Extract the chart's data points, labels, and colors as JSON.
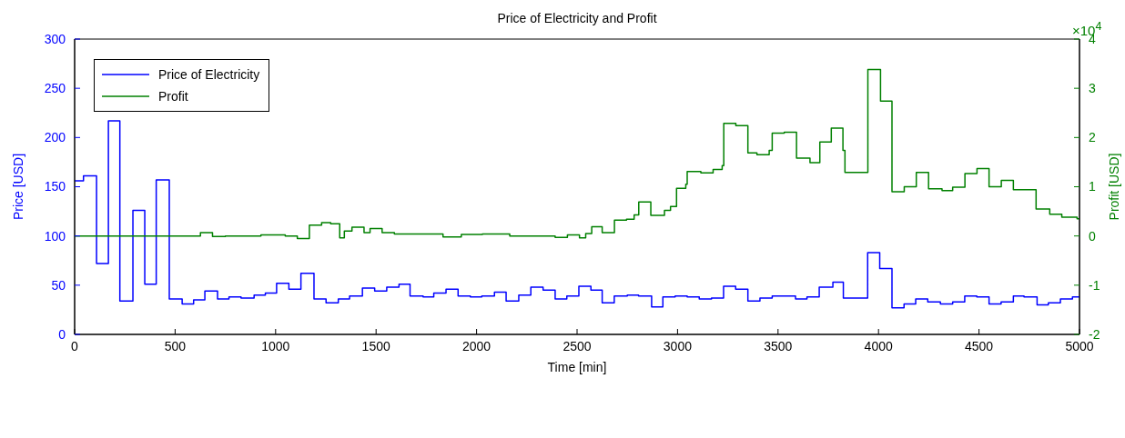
{
  "chart_data": {
    "type": "step",
    "title": "Price of Electricity and Profit",
    "xlabel": "Time [min]",
    "ylabel": "Price [USD]",
    "y2label": "Profit [USD]",
    "annotations": [
      "×10$^{4}$"
    ],
    "xlim": [
      0,
      5000
    ],
    "xticks": [
      0,
      500,
      1000,
      1500,
      2000,
      2500,
      3000,
      3500,
      4000,
      4500,
      5000
    ],
    "ylim": [
      0,
      300
    ],
    "yticks": [
      0,
      50,
      100,
      150,
      200,
      250,
      300
    ],
    "y2lim": [
      -2,
      4
    ],
    "y2ticks": [
      -2,
      -1,
      0,
      1,
      2,
      3,
      4
    ],
    "grid": false,
    "legend": "top left",
    "marker": "none",
    "line_style": "solid",
    "series": [
      {
        "name": "Price of Electricity",
        "color": "#0000ff",
        "x": [
          0,
          44,
          109,
          168,
          225,
          290,
          349,
          406,
          471,
          535,
          592,
          648,
          711,
          768,
          828,
          893,
          949,
          1005,
          1066,
          1126,
          1191,
          1251,
          1312,
          1368,
          1432,
          1493,
          1553,
          1614,
          1669,
          1734,
          1787,
          1848,
          1908,
          1969,
          2026,
          2089,
          2147,
          2210,
          2270,
          2331,
          2391,
          2449,
          2509,
          2569,
          2625,
          2685,
          2750,
          2806,
          2871,
          2927,
          2988,
          3048,
          3108,
          3169,
          3229,
          3289,
          3350,
          3410,
          3471,
          3587,
          3644,
          3705,
          3773,
          3825,
          3946,
          4006,
          4067,
          4127,
          4185,
          4245,
          4308,
          4369,
          4429,
          4489,
          4550,
          4610,
          4671,
          4724,
          4789,
          4845,
          4905,
          4965,
          5000
        ],
        "values": [
          156,
          161,
          72,
          217,
          34,
          126,
          51,
          157,
          36,
          31,
          35,
          44,
          36,
          38,
          37,
          40,
          42,
          52,
          46,
          62,
          36,
          32,
          36,
          39,
          47,
          44,
          48,
          51,
          39,
          38,
          42,
          46,
          39,
          38,
          39,
          43,
          34,
          40,
          48,
          45,
          36,
          39,
          49,
          45,
          32,
          39,
          40,
          39,
          28,
          38,
          39,
          38,
          36,
          37,
          49,
          46,
          34,
          37,
          39,
          36,
          38,
          48,
          53,
          37,
          83,
          67,
          27,
          31,
          36,
          33,
          31,
          33,
          39,
          38,
          31,
          33,
          39,
          38,
          30,
          32,
          36,
          38,
          38
        ]
      },
      {
        "name": "Profit",
        "color": "#008000",
        "axis": "y2",
        "x": [
          0,
          471,
          535,
          626,
          686,
          750,
          927,
          1048,
          1108,
          1168,
          1229,
          1274,
          1319,
          1342,
          1380,
          1440,
          1470,
          1530,
          1591,
          1833,
          1924,
          2029,
          2165,
          2391,
          2452,
          2512,
          2543,
          2573,
          2625,
          2686,
          2746,
          2784,
          2807,
          2867,
          2935,
          2965,
          2995,
          3041,
          3048,
          3116,
          3177,
          3222,
          3230,
          3290,
          3350,
          3395,
          3456,
          3471,
          3531,
          3592,
          3659,
          3708,
          3765,
          3823,
          3833,
          3947,
          4010,
          4067,
          4128,
          4188,
          4249,
          4316,
          4369,
          4430,
          4490,
          4550,
          4611,
          4671,
          4784,
          4852,
          4912,
          4988,
          5000
        ],
        "values": [
          0,
          0,
          0,
          0.07,
          -0.01,
          0,
          0.02,
          0,
          -0.05,
          0.22,
          0.27,
          0.25,
          -0.04,
          0.1,
          0.18,
          0.07,
          0.15,
          0.07,
          0.04,
          -0.02,
          0.03,
          0.04,
          0,
          -0.03,
          0.02,
          -0.04,
          0.05,
          0.19,
          0.07,
          0.32,
          0.34,
          0.43,
          0.69,
          0.42,
          0.52,
          0.6,
          0.97,
          1.05,
          1.31,
          1.28,
          1.35,
          1.43,
          2.29,
          2.24,
          1.69,
          1.65,
          1.74,
          2.09,
          2.11,
          1.58,
          1.49,
          1.91,
          2.19,
          1.74,
          1.29,
          3.38,
          2.74,
          0.9,
          1.0,
          1.29,
          0.96,
          0.92,
          0.99,
          1.27,
          1.37,
          1.0,
          1.13,
          0.94,
          0.55,
          0.44,
          0.38,
          0.35,
          0.35
        ]
      }
    ]
  }
}
